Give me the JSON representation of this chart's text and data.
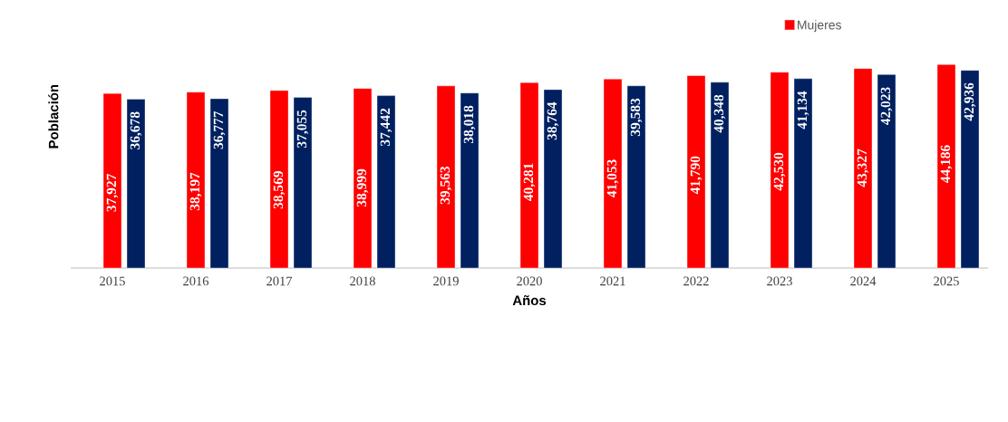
{
  "chart_data": {
    "type": "bar",
    "xlabel": "Años",
    "ylabel": "Población",
    "legend": "top right",
    "categories": [
      "2015",
      "2016",
      "2017",
      "2018",
      "2019",
      "2020",
      "2021",
      "2022",
      "2023",
      "2024",
      "2025"
    ],
    "series": [
      {
        "name": "Mujeres",
        "color": "#ff0000",
        "values": [
          37927,
          38197,
          38569,
          38999,
          39563,
          40281,
          41053,
          41790,
          42530,
          43327,
          44186
        ],
        "value_labels": [
          "37,927",
          "38,197",
          "38,569",
          "38,999",
          "39,563",
          "40,281",
          "41,053",
          "41,790",
          "42,530",
          "43,327",
          "44,186"
        ]
      },
      {
        "color": "#002060",
        "values": [
          36678,
          36777,
          37055,
          37442,
          38018,
          38764,
          39583,
          40348,
          41134,
          42023,
          42936
        ],
        "value_labels": [
          "36,678",
          "36,777",
          "37,055",
          "37,442",
          "38,018",
          "38,764",
          "39,583",
          "40,348",
          "41,134",
          "42,023",
          "42,936"
        ]
      }
    ]
  }
}
